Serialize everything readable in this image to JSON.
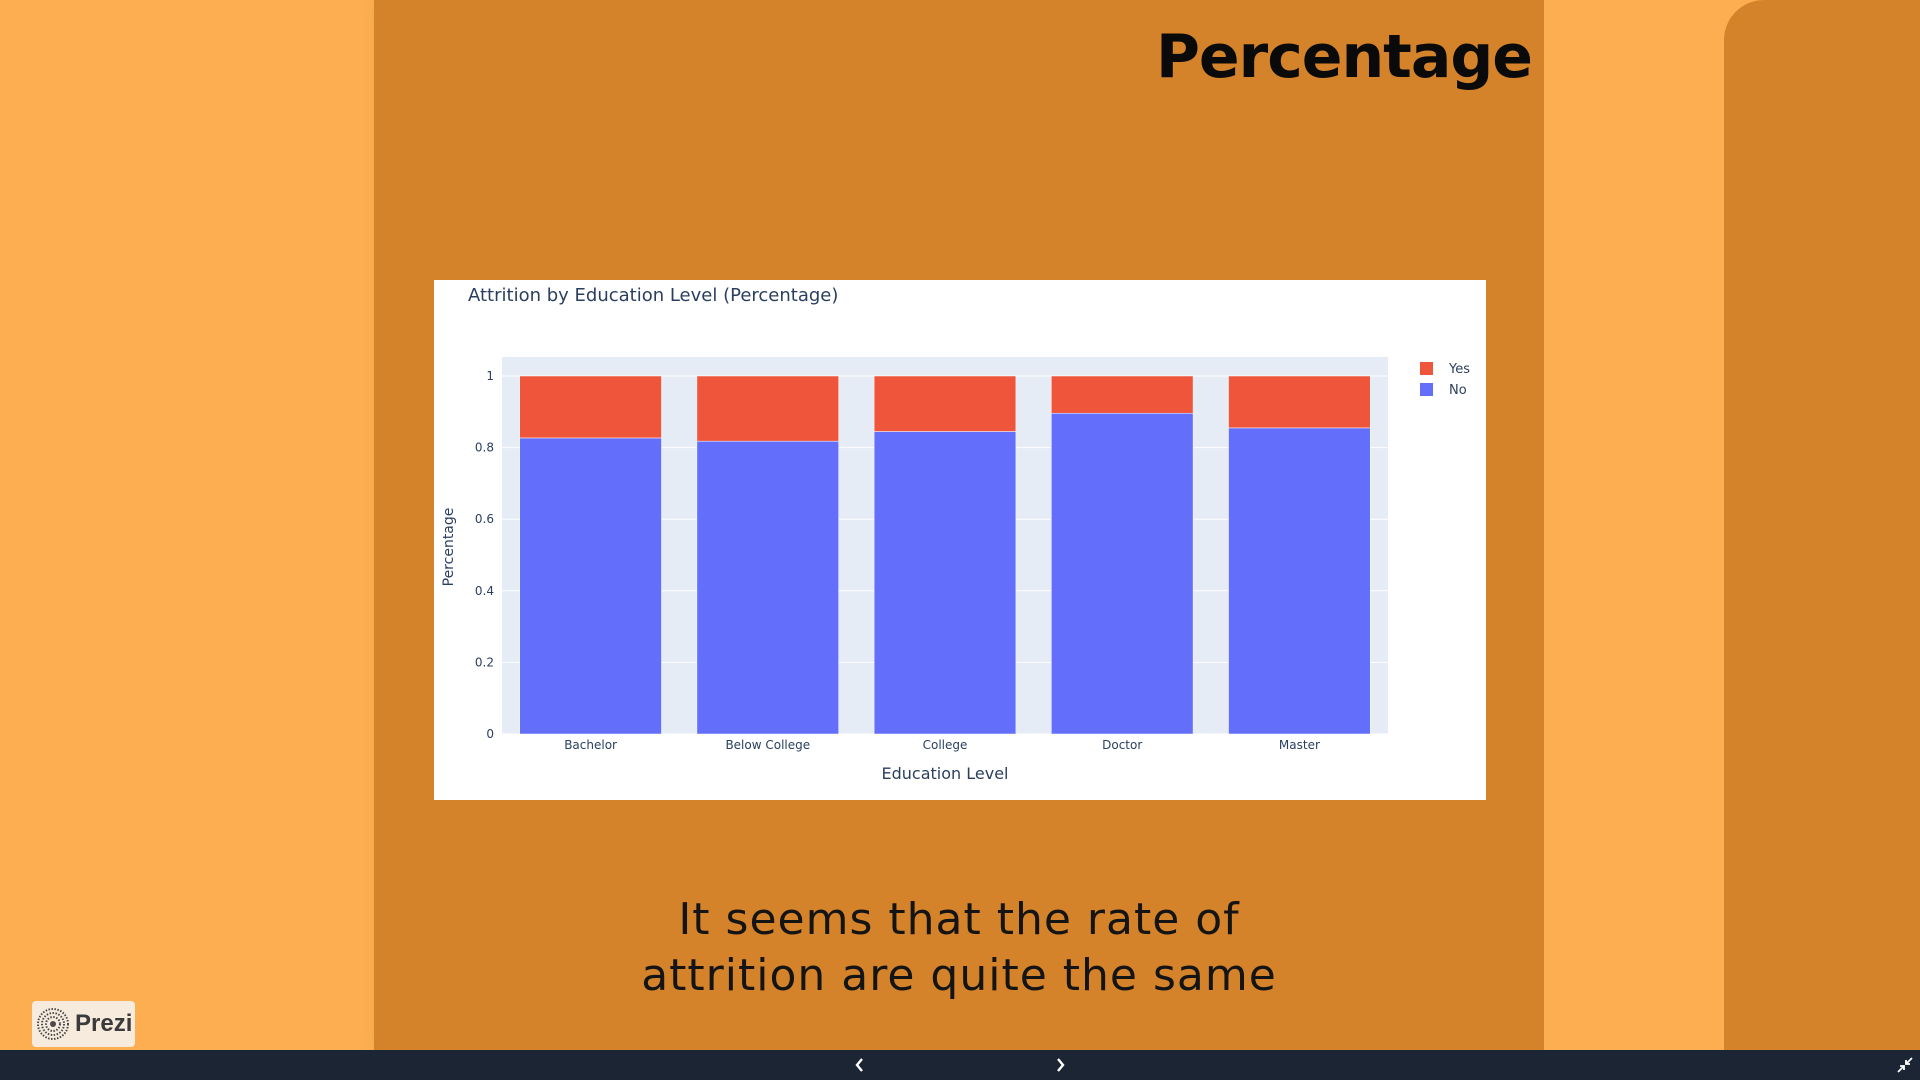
{
  "slide": {
    "title": "Percentage",
    "caption_line1": "It seems that the rate of",
    "caption_line2": "attrition are quite the same"
  },
  "branding": {
    "name": "Prezi"
  },
  "navigation": {
    "prev_icon": "chevron-left-icon",
    "next_icon": "chevron-right-icon",
    "fullscreen_icon": "exit-fullscreen-icon"
  },
  "colors": {
    "page_background": "#FCAE50",
    "slide_background": "#D4832A",
    "series_yes": "#EF553B",
    "series_no": "#636EFA",
    "plot_background": "#E5ECF6",
    "bottom_bar": "#1b2533"
  },
  "chart_data": {
    "type": "bar",
    "stacked": true,
    "title": "Attrition by Education Level (Percentage)",
    "xlabel": "Education Level",
    "ylabel": "Percentage",
    "categories": [
      "Bachelor",
      "Below College",
      "College",
      "Doctor",
      "Master"
    ],
    "series": [
      {
        "name": "No",
        "color": "#636EFA",
        "values": [
          0.827,
          0.818,
          0.845,
          0.896,
          0.855
        ]
      },
      {
        "name": "Yes",
        "color": "#EF553B",
        "values": [
          0.173,
          0.182,
          0.155,
          0.104,
          0.145
        ]
      }
    ],
    "legend_order": [
      "Yes",
      "No"
    ],
    "ylim": [
      0,
      1
    ],
    "yticks": [
      0,
      0.2,
      0.4,
      0.6,
      0.8,
      1
    ],
    "ytick_labels": [
      "0",
      "0.2",
      "0.4",
      "0.6",
      "0.8",
      "1"
    ],
    "grid": true,
    "legend_position": "top-right"
  }
}
